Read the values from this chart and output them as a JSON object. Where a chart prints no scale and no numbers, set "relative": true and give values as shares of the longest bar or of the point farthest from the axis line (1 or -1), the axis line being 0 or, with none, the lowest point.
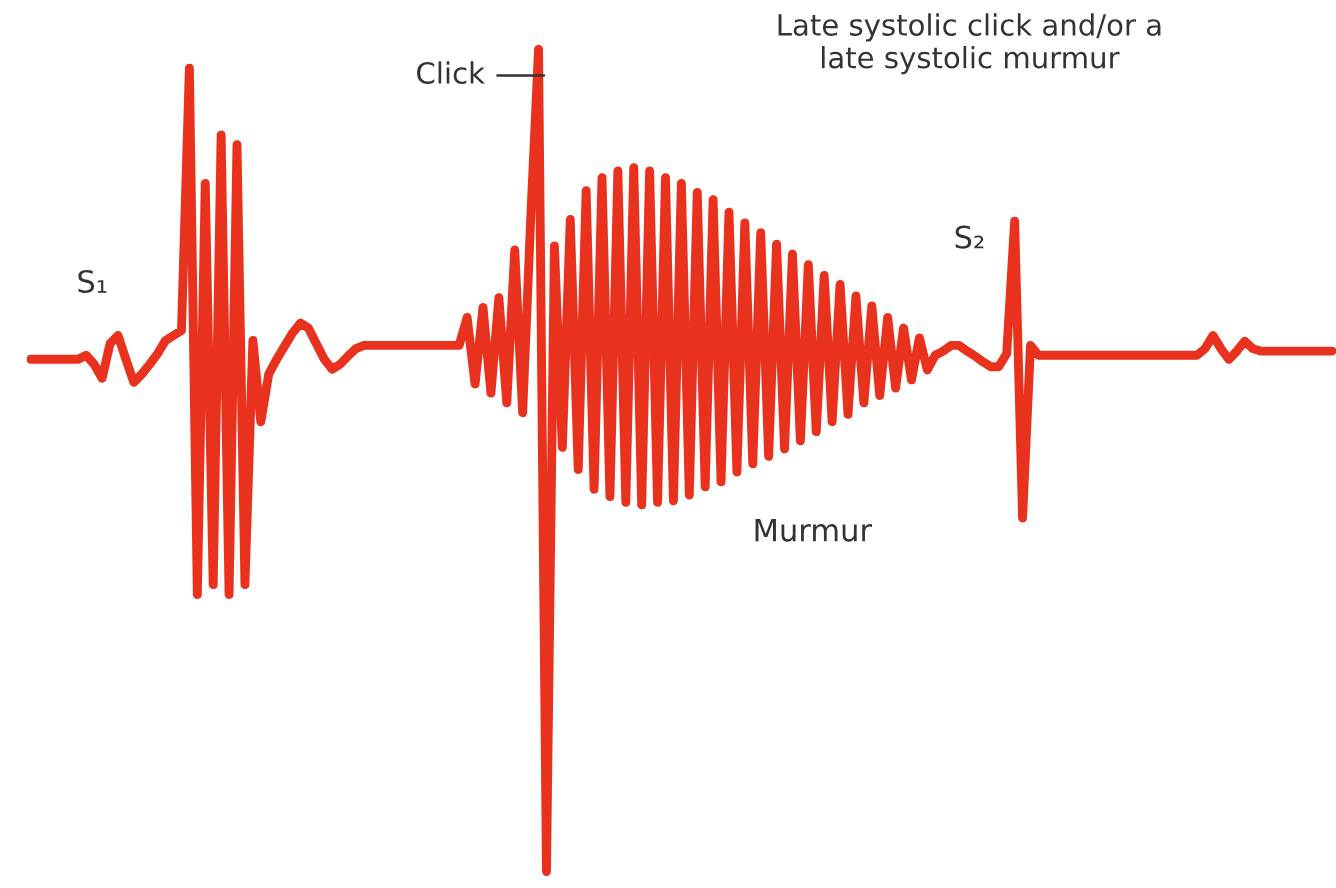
{
  "chart_data": {
    "type": "line",
    "relative": true,
    "title": "Late systolic click and/or a\nlate systolic murmur",
    "legend": false,
    "marker": "none",
    "line_style": "solid",
    "annotations": [
      "S₁",
      "Click",
      "Murmur",
      "S₂"
    ],
    "categories": [
      null,
      null,
      null,
      null,
      null,
      null,
      null,
      null,
      null,
      null,
      null,
      null,
      null,
      null,
      null,
      null,
      null,
      null,
      null,
      null,
      null,
      null,
      null,
      null,
      null,
      null,
      null,
      null,
      null,
      null,
      null,
      null,
      null,
      null,
      null,
      null,
      null,
      null,
      null,
      null,
      null,
      null,
      null,
      null,
      null,
      null,
      null,
      null,
      null,
      null,
      null,
      null,
      null,
      null,
      null,
      null,
      null,
      null,
      null,
      null,
      null,
      null,
      null,
      null,
      null,
      null,
      null,
      null,
      null,
      null,
      null,
      null,
      null,
      null,
      null,
      null,
      null,
      null,
      null,
      null,
      null,
      null,
      null,
      null,
      null,
      null,
      null,
      null,
      null,
      null,
      null,
      null,
      null,
      null,
      null,
      null,
      null,
      null,
      null,
      null,
      null,
      null,
      null,
      null,
      null,
      null,
      null,
      null,
      null,
      null,
      null,
      null,
      null,
      null,
      null,
      null,
      null,
      null,
      null,
      null,
      null,
      null,
      null,
      null,
      null,
      null,
      null,
      null,
      null,
      null,
      null,
      null,
      null,
      null,
      null,
      null,
      null,
      null,
      null,
      null,
      null,
      null,
      null,
      null,
      null,
      null,
      null,
      null,
      null,
      null,
      null,
      null,
      null,
      null,
      null,
      null,
      null,
      null,
      null,
      null,
      null,
      null,
      null,
      null,
      null
    ],
    "series": [
      {
        "color": "#e8321e",
        "values": [
          0.623,
          0.623,
          0.623,
          0.623,
          0.623,
          0.623,
          0.623,
          0.628,
          0.617,
          0.6,
          0.642,
          0.652,
          0.623,
          0.595,
          0.605,
          0.617,
          0.63,
          0.646,
          0.652,
          0.658,
          0.977,
          0.337,
          0.837,
          0.349,
          0.896,
          0.337,
          0.884,
          0.349,
          0.646,
          0.547,
          0.605,
          0.623,
          0.639,
          0.655,
          0.667,
          0.661,
          0.642,
          0.623,
          0.611,
          0.617,
          0.627,
          0.636,
          0.64,
          0.64,
          0.64,
          0.64,
          0.64,
          0.64,
          0.64,
          0.64,
          0.64,
          0.64,
          0.64,
          0.64,
          0.64,
          0.674,
          0.593,
          0.686,
          0.582,
          0.698,
          0.57,
          0.756,
          0.558,
          0.791,
          1,
          0,
          0.761,
          0.516,
          0.793,
          0.489,
          0.828,
          0.465,
          0.844,
          0.456,
          0.852,
          0.449,
          0.856,
          0.446,
          0.852,
          0.449,
          0.844,
          0.451,
          0.837,
          0.458,
          0.826,
          0.468,
          0.817,
          0.474,
          0.802,
          0.486,
          0.789,
          0.496,
          0.777,
          0.505,
          0.763,
          0.514,
          0.751,
          0.524,
          0.738,
          0.535,
          0.725,
          0.547,
          0.714,
          0.556,
          0.7,
          0.57,
          0.688,
          0.579,
          0.674,
          0.588,
          0.661,
          0.598,
          0.649,
          0.61,
          0.628,
          0.633,
          0.64,
          0.64,
          0.633,
          0.627,
          0.62,
          0.614,
          0.614,
          0.63,
          0.791,
          0.43,
          0.64,
          0.628,
          0.628,
          0.628,
          0.628,
          0.628,
          0.628,
          0.628,
          0.628,
          0.628,
          0.628,
          0.628,
          0.628,
          0.628,
          0.628,
          0.628,
          0.628,
          0.628,
          0.628,
          0.628,
          0.628,
          0.628,
          0.636,
          0.652,
          0.636,
          0.623,
          0.633,
          0.645,
          0.636,
          0.633,
          0.633,
          0.633,
          0.633,
          0.633,
          0.633,
          0.633,
          0.633,
          0.633,
          0.633
        ]
      }
    ]
  }
}
